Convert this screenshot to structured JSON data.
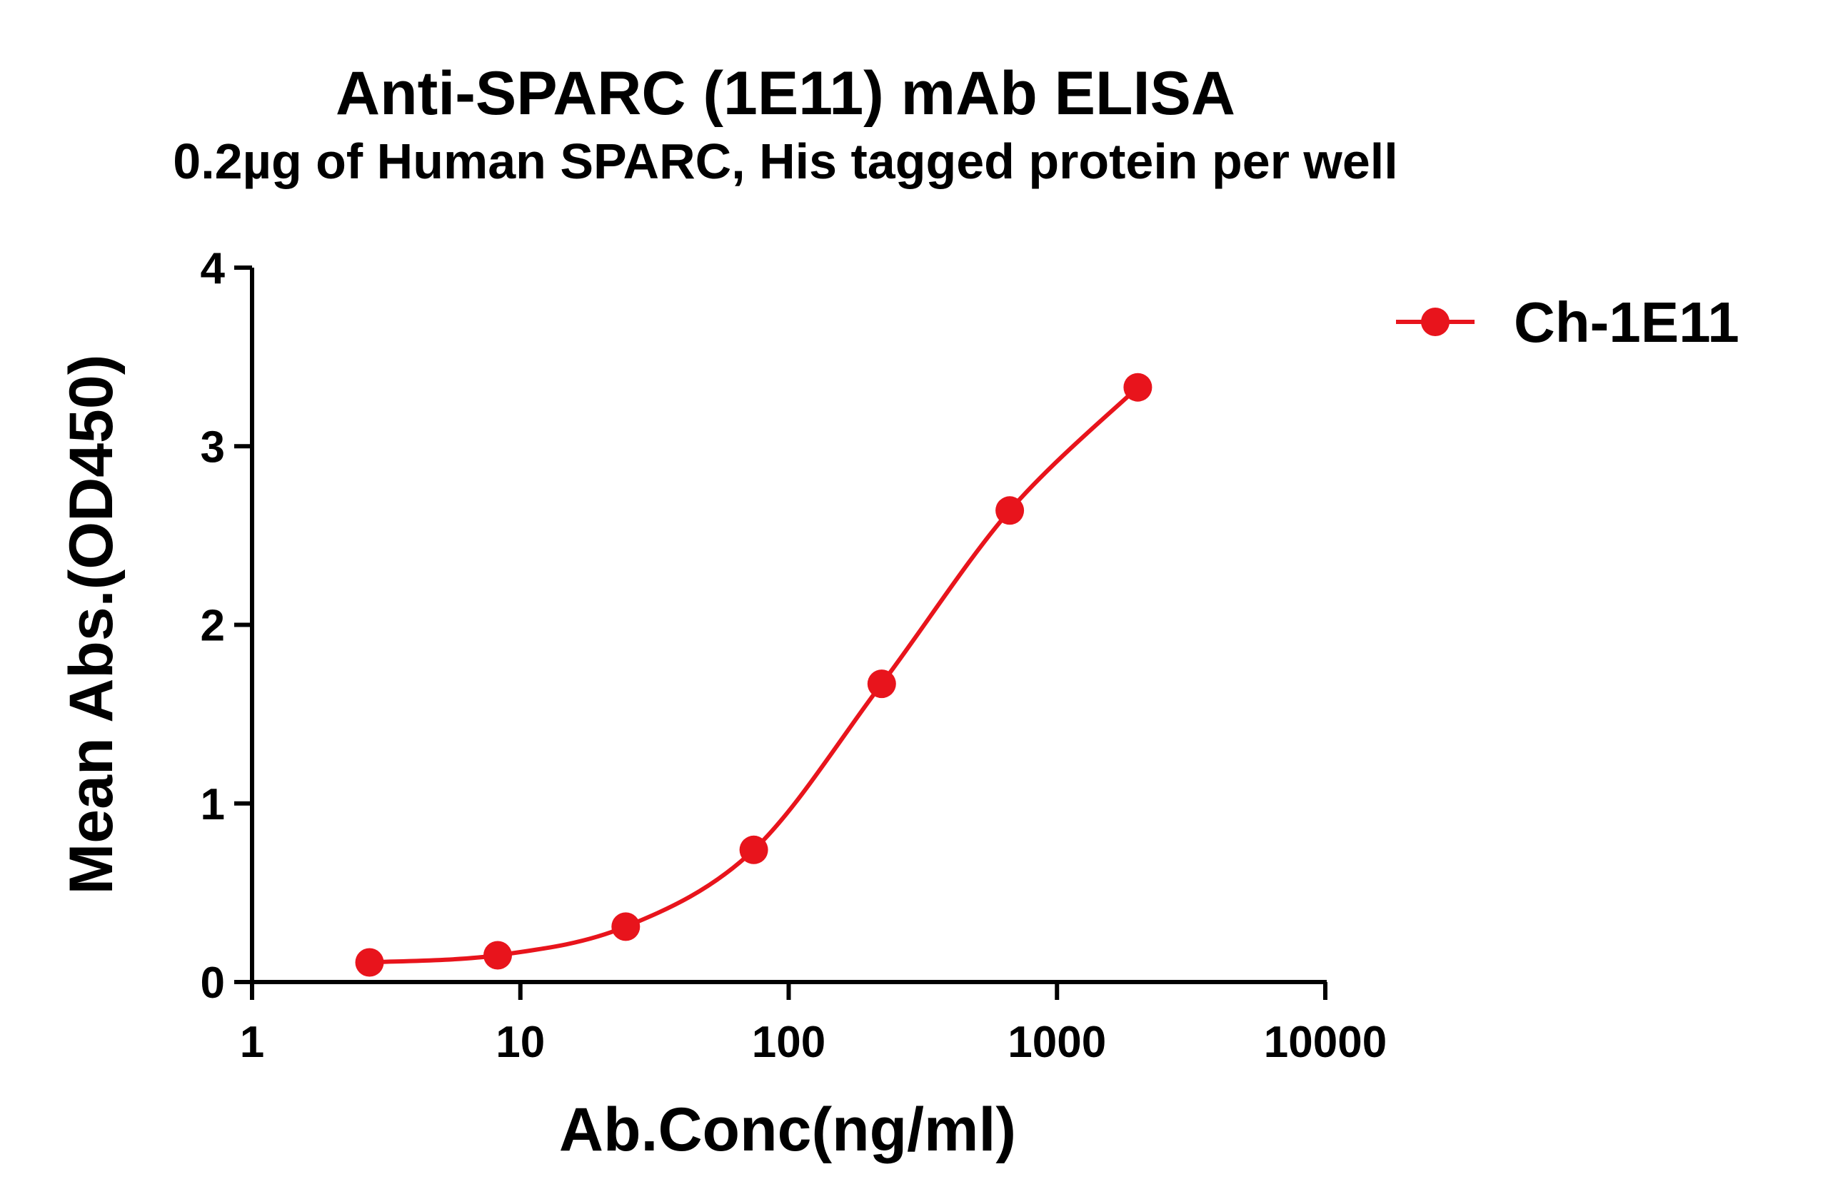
{
  "chart_data": {
    "type": "line",
    "title": "Anti-SPARC (1E11) mAb ELISA",
    "subtitle": "0.2µg of Human SPARC, His tagged protein per well",
    "xlabel": "Ab.Conc(ng/ml)",
    "ylabel": "Mean Abs.(OD450)",
    "x_scale": "log",
    "xlim": [
      1,
      10000
    ],
    "ylim": [
      0,
      4
    ],
    "x_ticks": [
      "1",
      "10",
      "100",
      "1000",
      "10000"
    ],
    "y_ticks": [
      "0",
      "1",
      "2",
      "3",
      "4"
    ],
    "grid": false,
    "legend_position": "top-right",
    "series": [
      {
        "name": "Ch-1E11",
        "color": "#e8141c",
        "marker": "circle",
        "fit": "sigmoidal",
        "x": [
          2.74,
          8.23,
          24.7,
          74.1,
          222.2,
          666.7,
          2000
        ],
        "y": [
          0.11,
          0.15,
          0.31,
          0.74,
          1.67,
          2.64,
          3.33
        ]
      }
    ]
  }
}
